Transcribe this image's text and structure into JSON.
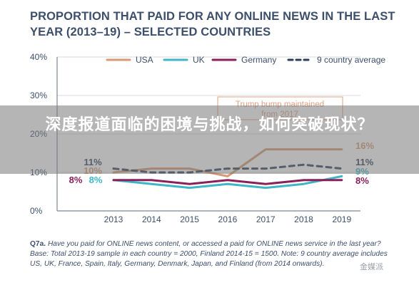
{
  "title": "PROPORTION THAT PAID FOR ANY ONLINE NEWS IN THE LAST YEAR (2013–19) – SELECTED COUNTRIES",
  "caption": {
    "question_label": "Q7a.",
    "text": "Have you paid for ONLINE news content, or accessed a paid for ONLINE news service in the last year? Base: Total 2013-19 sample in each country = 2000, Finland 2014-15 = 1500. Note: 9 country average includes US, UK, France, Spain, Italy, Germany, Denmark, Japan, and Finland (from 2014 onwards)."
  },
  "overlay": {
    "text": "深度报道面临的困境与挑战，如何突破现状？"
  },
  "watermark": "金媒派",
  "colors": {
    "USA": "#d89a72",
    "UK": "#3fb6c7",
    "Germany": "#8a1f5a",
    "average": "#2c3e57",
    "annotation": "#e0a07f"
  },
  "chart_data": {
    "type": "line",
    "x": [
      2013,
      2014,
      2015,
      2016,
      2017,
      2018,
      2019
    ],
    "ylim": [
      0,
      40
    ],
    "yticks": [
      "0%",
      "10%",
      "20%",
      "30%",
      "40%"
    ],
    "grid": true,
    "legend_position": "top",
    "series": [
      {
        "name": "USA",
        "values": [
          10,
          11,
          11,
          9,
          16,
          16,
          16
        ],
        "label_start": "10%",
        "label_end": "16%"
      },
      {
        "name": "UK",
        "values": [
          8,
          7,
          6,
          7,
          6,
          7,
          9
        ],
        "label_start": "8%",
        "label_end": "9%"
      },
      {
        "name": "Germany",
        "values": [
          8,
          8,
          7,
          8,
          7,
          8,
          8
        ],
        "label_start": "8%",
        "label_end": "8%"
      },
      {
        "name": "9 country average",
        "values": [
          11,
          10,
          10,
          11,
          11,
          12,
          11
        ],
        "label_start": "11%",
        "label_end": "11%"
      }
    ],
    "annotation": {
      "text": "Trump bump maintained from 2017"
    }
  }
}
